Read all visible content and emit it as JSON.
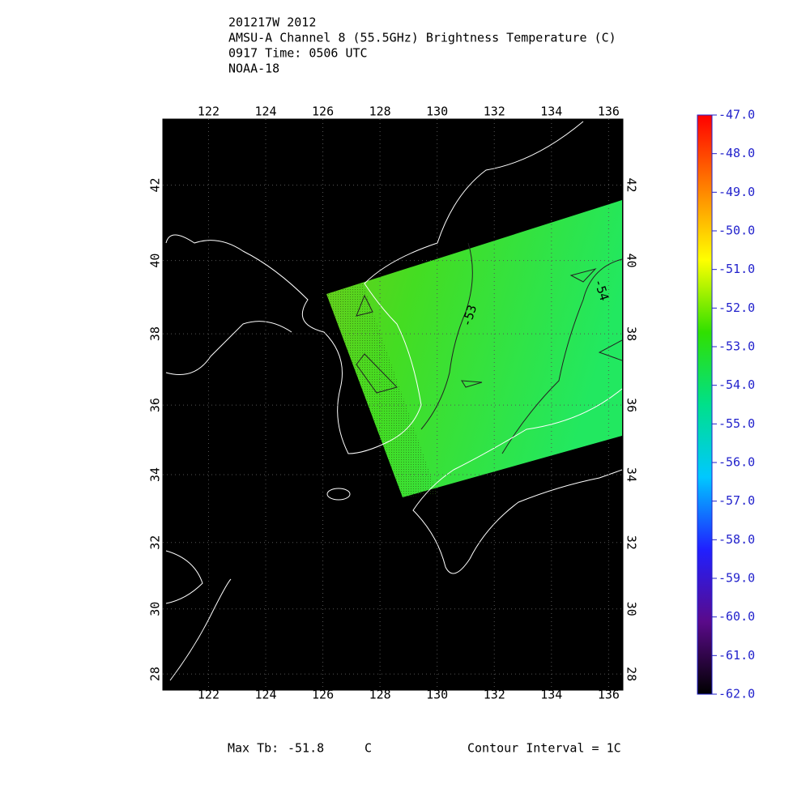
{
  "header": {
    "lines": [
      "201217W 2012",
      "AMSU-A Channel 8 (55.5GHz) Brightness Temperature (C)",
      "0917 Time: 0506 UTC",
      "NOAA-18"
    ]
  },
  "map": {
    "lonlim": [
      120.4,
      136.5
    ],
    "latlim": [
      27.5,
      43.7
    ],
    "lonticks": [
      122,
      124,
      126,
      128,
      130,
      132,
      134,
      136
    ],
    "latticks": [
      28,
      30,
      32,
      34,
      36,
      38,
      40,
      42
    ],
    "contour_labels": [
      {
        "value": -53,
        "label": "-53"
      },
      {
        "value": -54,
        "label": "-54"
      }
    ]
  },
  "colorbar": {
    "lim": [
      -62,
      -47
    ],
    "colors": [
      "#000000",
      "#5a0a8a",
      "#2020ff",
      "#00c8ff",
      "#00e08a",
      "#30e000",
      "#ffff00",
      "#ff8000",
      "#ff0000"
    ],
    "ticks": [
      {
        "value": -47,
        "label": "-47.0"
      },
      {
        "value": -48,
        "label": "-48.0"
      },
      {
        "value": -49,
        "label": "-49.0"
      },
      {
        "value": -50,
        "label": "-50.0"
      },
      {
        "value": -51,
        "label": "-51.0"
      },
      {
        "value": -52,
        "label": "-52.0"
      },
      {
        "value": -53,
        "label": "-53.0"
      },
      {
        "value": -54,
        "label": "-54.0"
      },
      {
        "value": -55,
        "label": "-55.0"
      },
      {
        "value": -56,
        "label": "-56.0"
      },
      {
        "value": -57,
        "label": "-57.0"
      },
      {
        "value": -58,
        "label": "-58.0"
      },
      {
        "value": -59,
        "label": "-59.0"
      },
      {
        "value": -60,
        "label": "-60.0"
      },
      {
        "value": -61,
        "label": "-61.0"
      },
      {
        "value": -62,
        "label": "-62.0"
      }
    ]
  },
  "footer": {
    "max_tb_label": "Max Tb:",
    "max_tb": -51.8,
    "max_tb_unit": "C",
    "contour_interval": "Contour Interval = 1C"
  }
}
